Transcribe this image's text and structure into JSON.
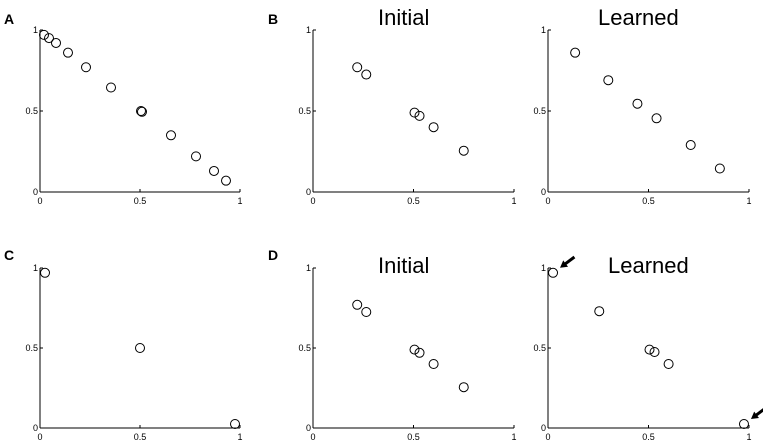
{
  "panel_letters": [
    "A",
    "B",
    "C",
    "D"
  ],
  "chart_data": [
    {
      "type": "scatter",
      "panel": "A",
      "title": "",
      "xlim": [
        0,
        1
      ],
      "ylim": [
        0,
        1
      ],
      "x_ticks": [
        "0",
        "0.5",
        "1"
      ],
      "y_ticks": [
        "0",
        "0.5",
        "1"
      ],
      "grid": false,
      "points": [
        {
          "x": 0.02,
          "y": 0.97
        },
        {
          "x": 0.045,
          "y": 0.95
        },
        {
          "x": 0.08,
          "y": 0.92
        },
        {
          "x": 0.14,
          "y": 0.86
        },
        {
          "x": 0.23,
          "y": 0.77
        },
        {
          "x": 0.355,
          "y": 0.645
        },
        {
          "x": 0.505,
          "y": 0.5
        },
        {
          "x": 0.51,
          "y": 0.495
        },
        {
          "x": 0.655,
          "y": 0.35
        },
        {
          "x": 0.78,
          "y": 0.22
        },
        {
          "x": 0.87,
          "y": 0.13
        },
        {
          "x": 0.93,
          "y": 0.07
        }
      ]
    },
    {
      "type": "scatter",
      "panel": "B",
      "title": "Initial",
      "xlim": [
        0,
        1
      ],
      "ylim": [
        0,
        1
      ],
      "x_ticks": [
        "0",
        "0.5",
        "1"
      ],
      "y_ticks": [
        "0",
        "0.5",
        "1"
      ],
      "grid": false,
      "points": [
        {
          "x": 0.22,
          "y": 0.77
        },
        {
          "x": 0.265,
          "y": 0.725
        },
        {
          "x": 0.505,
          "y": 0.49
        },
        {
          "x": 0.53,
          "y": 0.47
        },
        {
          "x": 0.6,
          "y": 0.4
        },
        {
          "x": 0.75,
          "y": 0.255
        }
      ]
    },
    {
      "type": "scatter",
      "panel": "B",
      "title": "Learned",
      "xlim": [
        0,
        1
      ],
      "ylim": [
        0,
        1
      ],
      "x_ticks": [
        "0",
        "0.5",
        "1"
      ],
      "y_ticks": [
        "0",
        "0.5",
        "1"
      ],
      "grid": false,
      "points": [
        {
          "x": 0.135,
          "y": 0.86
        },
        {
          "x": 0.3,
          "y": 0.69
        },
        {
          "x": 0.445,
          "y": 0.545
        },
        {
          "x": 0.54,
          "y": 0.455
        },
        {
          "x": 0.71,
          "y": 0.29
        },
        {
          "x": 0.855,
          "y": 0.145
        }
      ]
    },
    {
      "type": "scatter",
      "panel": "C",
      "title": "",
      "xlim": [
        0,
        1
      ],
      "ylim": [
        0,
        1
      ],
      "x_ticks": [
        "0",
        "0.5",
        "1"
      ],
      "y_ticks": [
        "0",
        "0.5",
        "1"
      ],
      "grid": false,
      "points": [
        {
          "x": 0.025,
          "y": 0.97
        },
        {
          "x": 0.5,
          "y": 0.5
        },
        {
          "x": 0.975,
          "y": 0.025
        }
      ]
    },
    {
      "type": "scatter",
      "panel": "D",
      "title": "Initial",
      "xlim": [
        0,
        1
      ],
      "ylim": [
        0,
        1
      ],
      "x_ticks": [
        "0",
        "0.5",
        "1"
      ],
      "y_ticks": [
        "0",
        "0.5",
        "1"
      ],
      "grid": false,
      "points": [
        {
          "x": 0.22,
          "y": 0.77
        },
        {
          "x": 0.265,
          "y": 0.725
        },
        {
          "x": 0.505,
          "y": 0.49
        },
        {
          "x": 0.53,
          "y": 0.47
        },
        {
          "x": 0.6,
          "y": 0.4
        },
        {
          "x": 0.75,
          "y": 0.255
        }
      ]
    },
    {
      "type": "scatter",
      "panel": "D",
      "title": "Learned",
      "xlim": [
        0,
        1
      ],
      "ylim": [
        0,
        1
      ],
      "x_ticks": [
        "0",
        "0.5",
        "1"
      ],
      "y_ticks": [
        "0",
        "0.5",
        "1"
      ],
      "grid": false,
      "points": [
        {
          "x": 0.025,
          "y": 0.97
        },
        {
          "x": 0.255,
          "y": 0.73
        },
        {
          "x": 0.505,
          "y": 0.49
        },
        {
          "x": 0.53,
          "y": 0.475
        },
        {
          "x": 0.6,
          "y": 0.4
        },
        {
          "x": 0.975,
          "y": 0.025
        }
      ],
      "arrows": [
        {
          "target_x": 0.025,
          "target_y": 0.97,
          "direction": "from-upper-right"
        },
        {
          "target_x": 0.975,
          "target_y": 0.025,
          "direction": "from-upper-right"
        }
      ]
    }
  ]
}
